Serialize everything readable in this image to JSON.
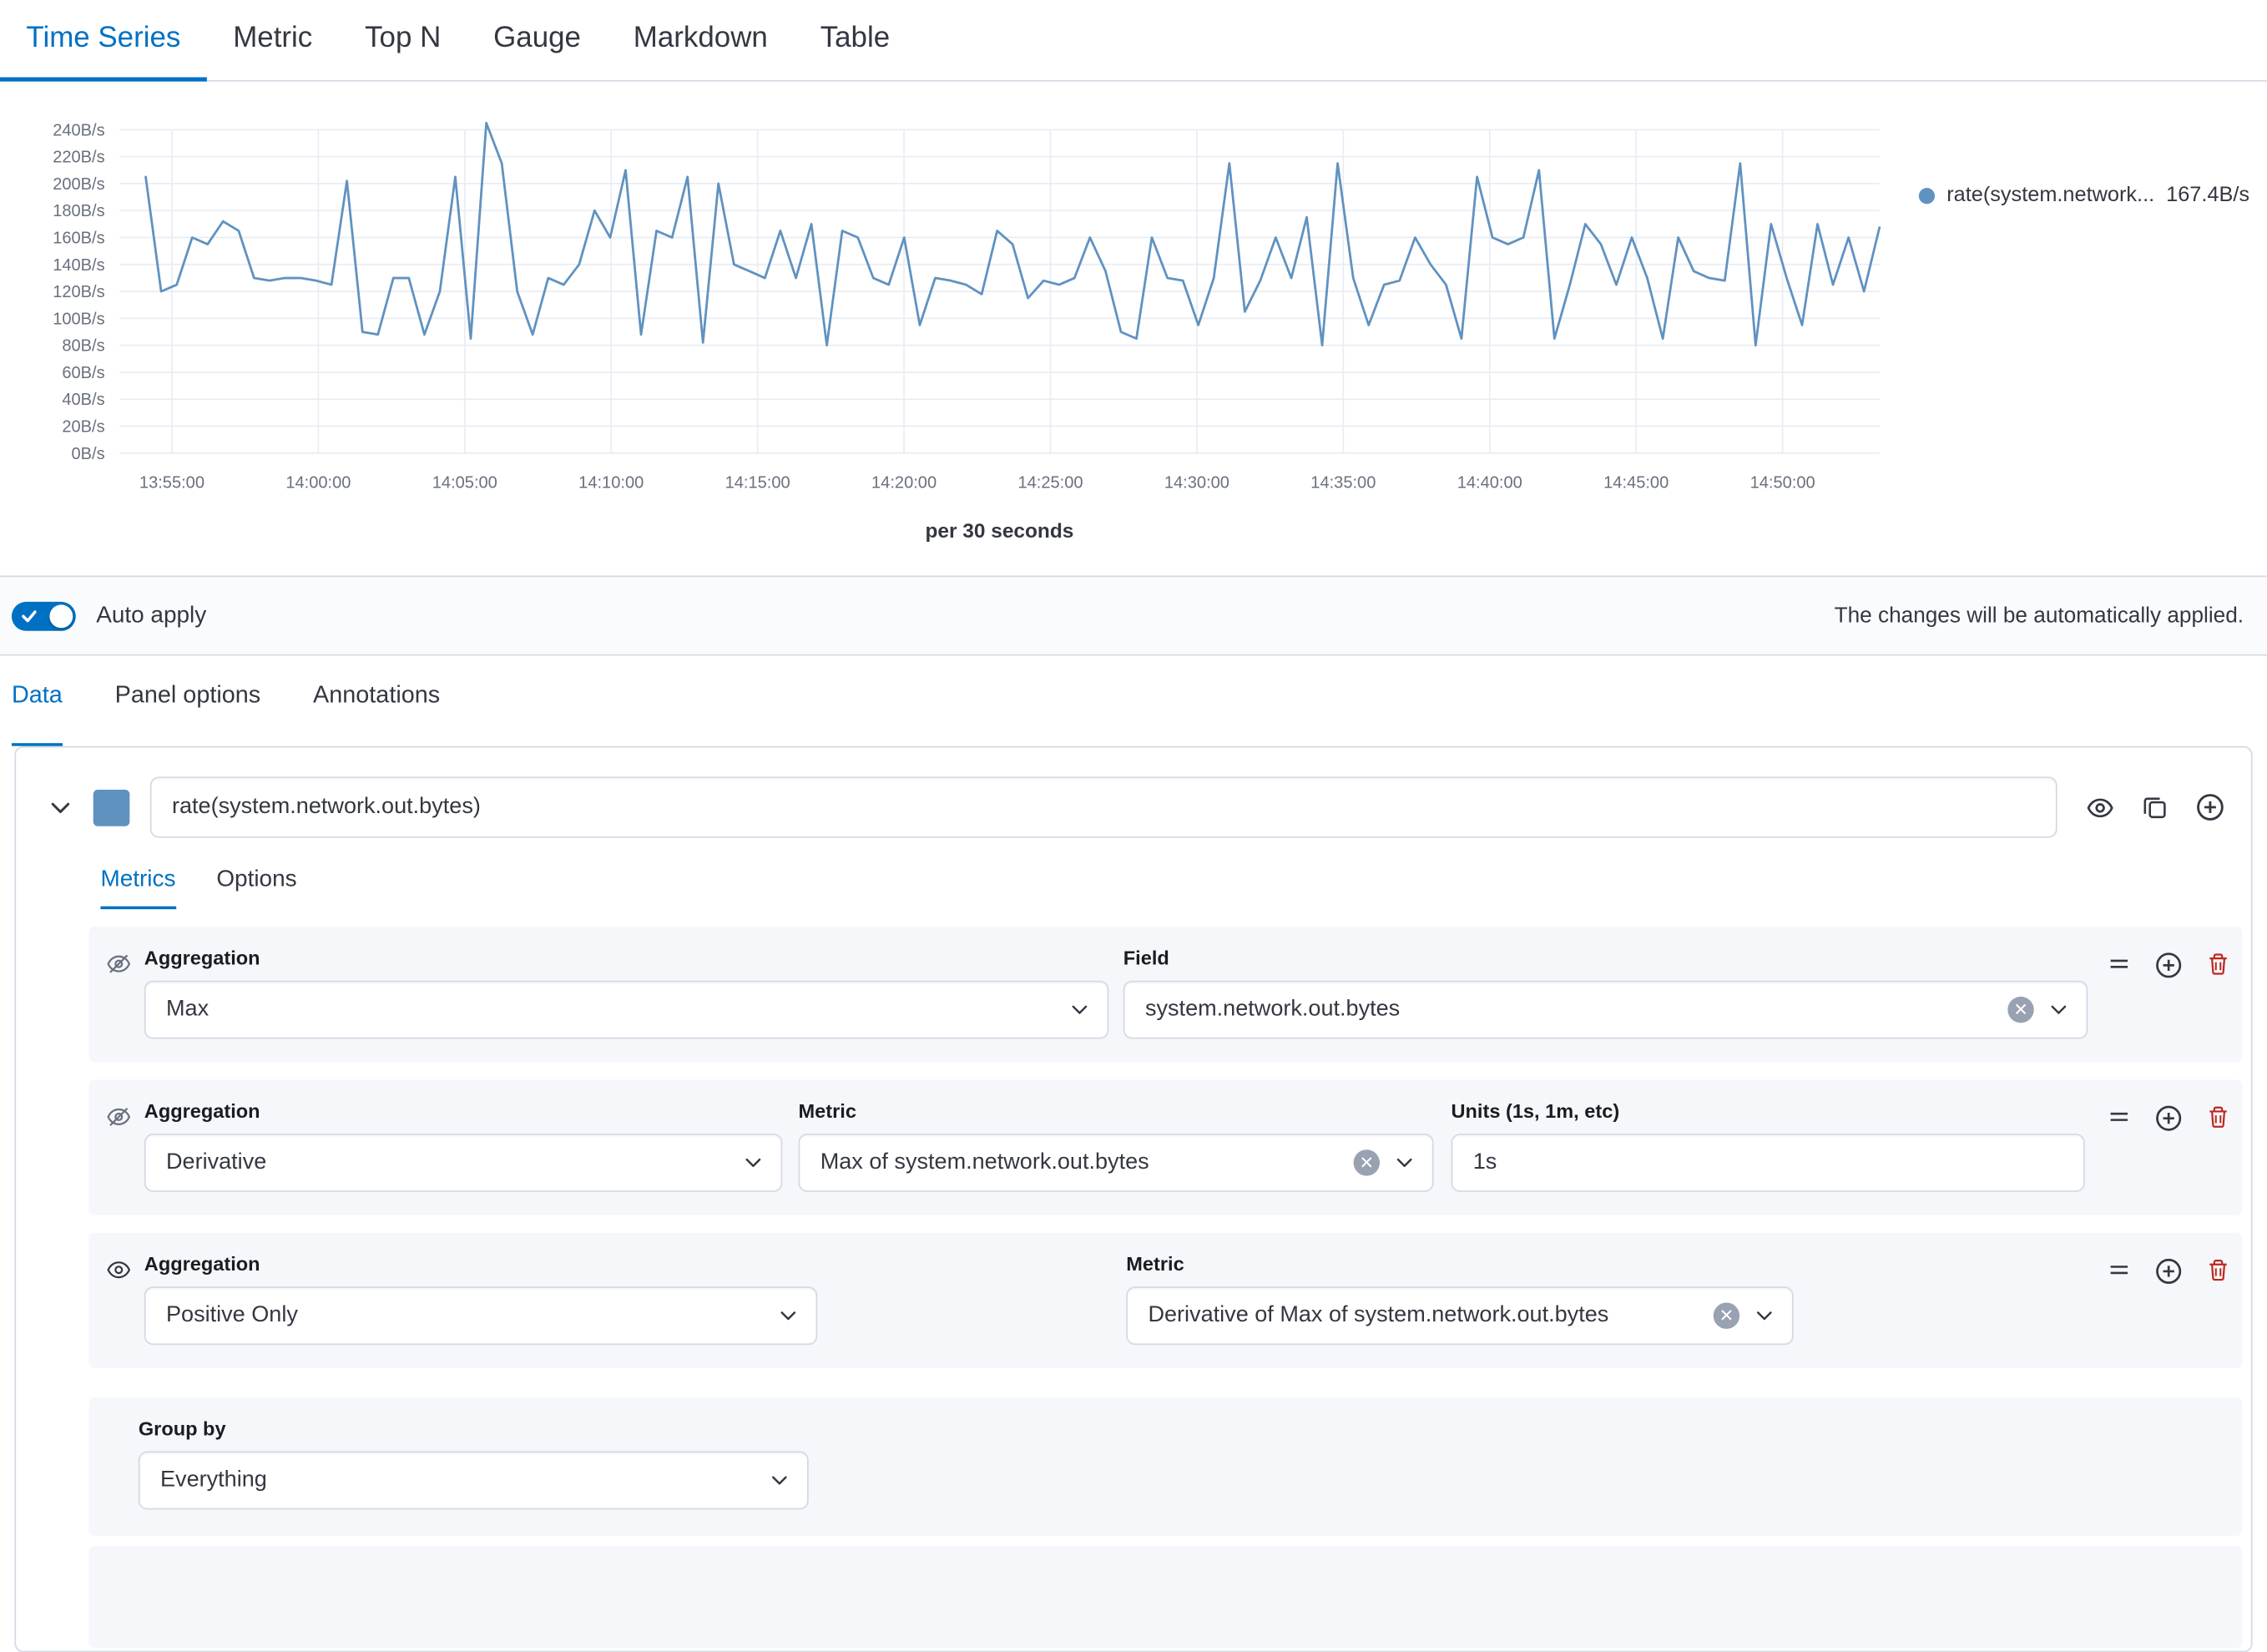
{
  "colors": {
    "accent": "#0071C2",
    "series": "#6092C0",
    "danger": "#BD271E"
  },
  "top_tabs": [
    "Time Series",
    "Metric",
    "Top N",
    "Gauge",
    "Markdown",
    "Table"
  ],
  "chart_data": {
    "type": "line",
    "title": "",
    "xlabel": "per 30 seconds",
    "ylabel": "",
    "series_name": "rate(system.network.out.bytes)",
    "color": "#6092C0",
    "x_start": "13:53:30",
    "x_interval_seconds": 30,
    "x_tick_labels": [
      "13:55:00",
      "14:00:00",
      "14:05:00",
      "14:10:00",
      "14:15:00",
      "14:20:00",
      "14:25:00",
      "14:30:00",
      "14:35:00",
      "14:40:00",
      "14:45:00",
      "14:50:00"
    ],
    "y_tick_labels": [
      "0B/s",
      "20B/s",
      "40B/s",
      "60B/s",
      "80B/s",
      "100B/s",
      "120B/s",
      "140B/s",
      "160B/s",
      "180B/s",
      "200B/s",
      "220B/s",
      "240B/s"
    ],
    "ylim": [
      0,
      250
    ],
    "grid": true,
    "legend_position": "right",
    "values": [
      205,
      120,
      125,
      160,
      155,
      172,
      165,
      130,
      128,
      130,
      130,
      128,
      125,
      202,
      90,
      88,
      130,
      130,
      88,
      120,
      205,
      85,
      245,
      215,
      120,
      88,
      130,
      125,
      140,
      180,
      160,
      210,
      88,
      165,
      160,
      205,
      82,
      200,
      140,
      135,
      130,
      165,
      130,
      170,
      80,
      165,
      160,
      130,
      125,
      160,
      95,
      130,
      128,
      125,
      118,
      165,
      155,
      115,
      128,
      125,
      130,
      160,
      135,
      90,
      85,
      160,
      130,
      128,
      95,
      130,
      215,
      105,
      128,
      160,
      130,
      175,
      80,
      215,
      130,
      95,
      125,
      128,
      160,
      140,
      125,
      85,
      205,
      160,
      155,
      160,
      210,
      85,
      125,
      170,
      155,
      125,
      160,
      130,
      85,
      160,
      135,
      130,
      128,
      215,
      80,
      170,
      130,
      95,
      170,
      125,
      160,
      120,
      167.4
    ]
  },
  "legend": {
    "label": "rate(system.network...",
    "value": "167.4B/s"
  },
  "auto_apply": {
    "label": "Auto apply",
    "note": "The changes will be automatically applied."
  },
  "editor_tabs": [
    "Data",
    "Panel options",
    "Annotations"
  ],
  "series": {
    "label": "rate(system.network.out.bytes)",
    "color": "#6092C0",
    "tabs": [
      "Metrics",
      "Options"
    ],
    "aggregations": [
      {
        "agg_label": "Aggregation",
        "agg_value": "Max",
        "field_label": "Field",
        "field_value": "system.network.out.bytes",
        "hidden": true
      },
      {
        "agg_label": "Aggregation",
        "agg_value": "Derivative",
        "field_label": "Metric",
        "field_value": "Max of system.network.out.bytes",
        "units_label": "Units (1s, 1m, etc)",
        "units_value": "1s",
        "hidden": true
      },
      {
        "agg_label": "Aggregation",
        "agg_value": "Positive Only",
        "field_label": "Metric",
        "field_value": "Derivative of Max of system.network.out.bytes",
        "hidden": false
      }
    ],
    "group_by": {
      "label": "Group by",
      "value": "Everything"
    }
  }
}
